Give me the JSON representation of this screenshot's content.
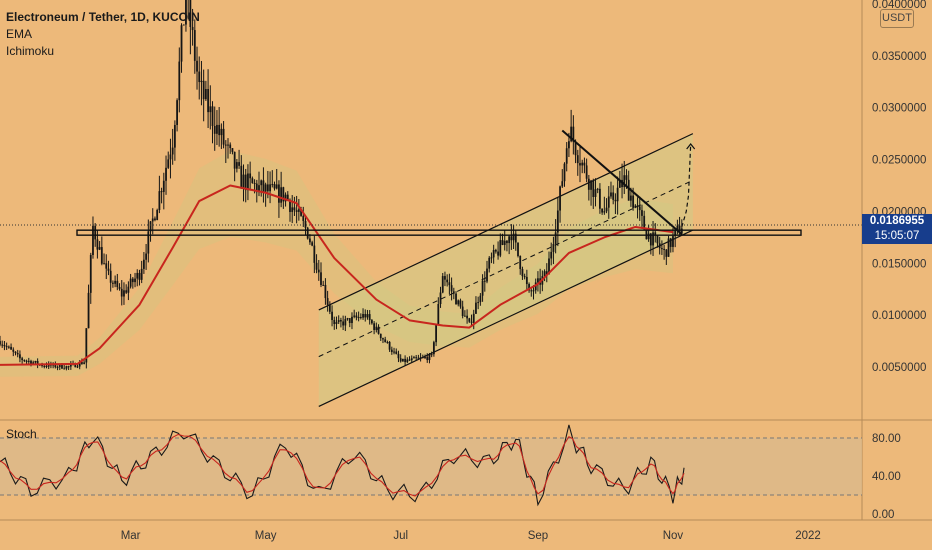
{
  "legend": {
    "title": "Electroneum / Tether, 1D, KUCOIN",
    "indicators": [
      "EMA",
      "Ichimoku"
    ]
  },
  "price_axis": {
    "unit": "USDT",
    "ticks": [
      "0.0400000",
      "0.0350000",
      "0.0300000",
      "0.0250000",
      "0.0200000",
      "0.0150000",
      "0.0100000",
      "0.0050000"
    ],
    "tick_values": [
      0.04,
      0.035,
      0.03,
      0.025,
      0.02,
      0.015,
      0.01,
      0.005
    ]
  },
  "current_price": {
    "value": "0.0186955",
    "countdown": "15:05:07"
  },
  "time_axis": {
    "labels": [
      "Mar",
      "May",
      "Jul",
      "Sep",
      "Nov",
      "2022"
    ]
  },
  "stoch": {
    "label": "Stoch",
    "ticks": [
      "80.00",
      "40.00",
      "0.00"
    ],
    "band": [
      20,
      80
    ]
  },
  "colors": {
    "background": "#EDB97A",
    "ema": "#C8261E",
    "candle": "#151515",
    "cloud": "#D9C37E",
    "price_tag": "#173D8C"
  },
  "chart_data": {
    "type": "line",
    "symbol": "Electroneum / Tether",
    "interval": "1D",
    "exchange": "KUCOIN",
    "y_range": [
      0,
      0.041
    ],
    "price_series": [
      {
        "date": "2021-01-01",
        "price": 0.0075
      },
      {
        "date": "2021-01-10",
        "price": 0.0058
      },
      {
        "date": "2021-01-20",
        "price": 0.0052
      },
      {
        "date": "2021-02-01",
        "price": 0.005
      },
      {
        "date": "2021-02-08",
        "price": 0.0055
      },
      {
        "date": "2021-02-12",
        "price": 0.0185
      },
      {
        "date": "2021-02-18",
        "price": 0.014
      },
      {
        "date": "2021-02-25",
        "price": 0.012
      },
      {
        "date": "2021-03-05",
        "price": 0.014
      },
      {
        "date": "2021-03-12",
        "price": 0.02
      },
      {
        "date": "2021-03-20",
        "price": 0.027
      },
      {
        "date": "2021-03-26",
        "price": 0.041
      },
      {
        "date": "2021-04-01",
        "price": 0.032
      },
      {
        "date": "2021-04-10",
        "price": 0.0275
      },
      {
        "date": "2021-04-20",
        "price": 0.023
      },
      {
        "date": "2021-05-01",
        "price": 0.022
      },
      {
        "date": "2021-05-10",
        "price": 0.0215
      },
      {
        "date": "2021-05-20",
        "price": 0.018
      },
      {
        "date": "2021-06-01",
        "price": 0.009
      },
      {
        "date": "2021-06-15",
        "price": 0.01
      },
      {
        "date": "2021-07-01",
        "price": 0.0055
      },
      {
        "date": "2021-07-15",
        "price": 0.006
      },
      {
        "date": "2021-07-20",
        "price": 0.014
      },
      {
        "date": "2021-08-01",
        "price": 0.009
      },
      {
        "date": "2021-08-10",
        "price": 0.015
      },
      {
        "date": "2021-08-20",
        "price": 0.018
      },
      {
        "date": "2021-08-28",
        "price": 0.012
      },
      {
        "date": "2021-09-05",
        "price": 0.014
      },
      {
        "date": "2021-09-10",
        "price": 0.02
      },
      {
        "date": "2021-09-15",
        "price": 0.028
      },
      {
        "date": "2021-09-22",
        "price": 0.024
      },
      {
        "date": "2021-10-01",
        "price": 0.02
      },
      {
        "date": "2021-10-10",
        "price": 0.023
      },
      {
        "date": "2021-10-20",
        "price": 0.018
      },
      {
        "date": "2021-10-28",
        "price": 0.016
      },
      {
        "date": "2021-11-05",
        "price": 0.0187
      }
    ],
    "ema_series": [
      {
        "date": "2021-01-01",
        "value": 0.0052
      },
      {
        "date": "2021-02-05",
        "value": 0.0053
      },
      {
        "date": "2021-02-15",
        "value": 0.0068
      },
      {
        "date": "2021-03-05",
        "value": 0.011
      },
      {
        "date": "2021-03-20",
        "value": 0.0165
      },
      {
        "date": "2021-04-01",
        "value": 0.021
      },
      {
        "date": "2021-04-15",
        "value": 0.0225
      },
      {
        "date": "2021-05-01",
        "value": 0.0218
      },
      {
        "date": "2021-05-15",
        "value": 0.0208
      },
      {
        "date": "2021-06-01",
        "value": 0.0155
      },
      {
        "date": "2021-06-20",
        "value": 0.0115
      },
      {
        "date": "2021-07-05",
        "value": 0.0095
      },
      {
        "date": "2021-07-20",
        "value": 0.009
      },
      {
        "date": "2021-08-01",
        "value": 0.0088
      },
      {
        "date": "2021-08-15",
        "value": 0.011
      },
      {
        "date": "2021-09-01",
        "value": 0.013
      },
      {
        "date": "2021-09-15",
        "value": 0.016
      },
      {
        "date": "2021-10-01",
        "value": 0.0175
      },
      {
        "date": "2021-10-15",
        "value": 0.0185
      },
      {
        "date": "2021-11-01",
        "value": 0.018
      }
    ],
    "support_resistance_level": 0.018,
    "channel": {
      "upper": [
        {
          "date": "2021-05-25",
          "price": 0.0105
        },
        {
          "date": "2021-11-10",
          "price": 0.0275
        }
      ],
      "middle": [
        {
          "date": "2021-05-25",
          "price": 0.006
        },
        {
          "date": "2021-11-10",
          "price": 0.023
        }
      ],
      "lower": [
        {
          "date": "2021-05-25",
          "price": 0.0012
        },
        {
          "date": "2021-11-10",
          "price": 0.0182
        }
      ]
    },
    "descending_trendline": [
      {
        "date": "2021-09-12",
        "price": 0.0278
      },
      {
        "date": "2021-11-05",
        "price": 0.0178
      }
    ],
    "projection": [
      {
        "date": "2021-11-05",
        "price": 0.0185
      },
      {
        "date": "2021-11-07",
        "price": 0.02
      },
      {
        "date": "2021-11-08",
        "price": 0.0215
      },
      {
        "date": "2021-11-09",
        "price": 0.0265
      }
    ],
    "stoch_series": [
      {
        "date": "2021-01-01",
        "value": 55
      },
      {
        "date": "2021-01-15",
        "value": 25
      },
      {
        "date": "2021-02-01",
        "value": 40
      },
      {
        "date": "2021-02-12",
        "value": 82
      },
      {
        "date": "2021-02-25",
        "value": 35
      },
      {
        "date": "2021-03-10",
        "value": 60
      },
      {
        "date": "2021-03-25",
        "value": 88
      },
      {
        "date": "2021-04-10",
        "value": 50
      },
      {
        "date": "2021-04-25",
        "value": 20
      },
      {
        "date": "2021-05-10",
        "value": 75
      },
      {
        "date": "2021-05-25",
        "value": 20
      },
      {
        "date": "2021-06-10",
        "value": 65
      },
      {
        "date": "2021-06-25",
        "value": 25
      },
      {
        "date": "2021-07-10",
        "value": 20
      },
      {
        "date": "2021-07-25",
        "value": 62
      },
      {
        "date": "2021-08-10",
        "value": 55
      },
      {
        "date": "2021-08-22",
        "value": 80
      },
      {
        "date": "2021-09-01",
        "value": 15
      },
      {
        "date": "2021-09-15",
        "value": 85
      },
      {
        "date": "2021-09-25",
        "value": 50
      },
      {
        "date": "2021-10-10",
        "value": 25
      },
      {
        "date": "2021-10-22",
        "value": 55
      },
      {
        "date": "2021-11-01",
        "value": 20
      },
      {
        "date": "2021-11-07",
        "value": 50
      }
    ]
  }
}
